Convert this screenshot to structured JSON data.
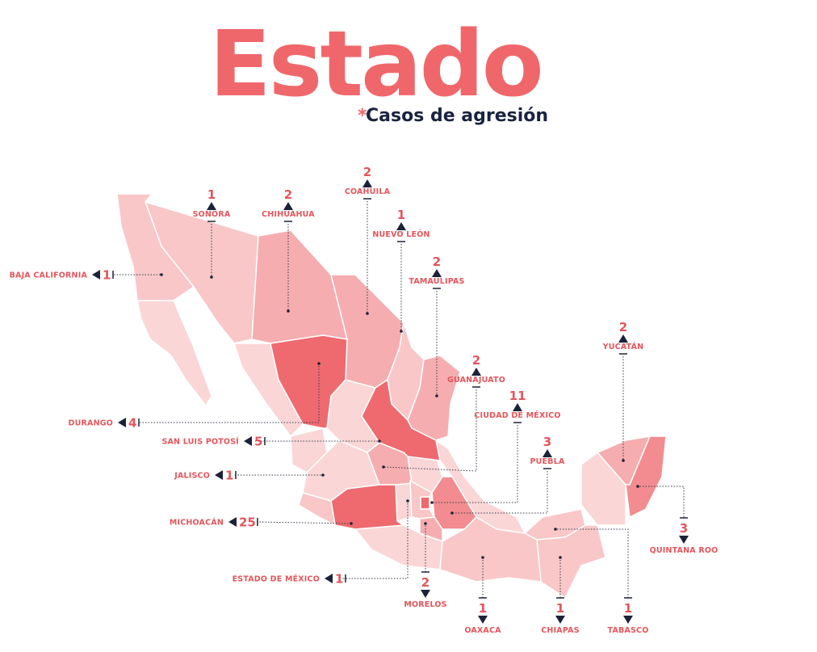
{
  "header": {
    "title": "Estado",
    "asterisk": "*",
    "subtitle": "Casos de agresión"
  },
  "states": [
    {
      "name": "SONORA",
      "count": 1
    },
    {
      "name": "CHIHUAHUA",
      "count": 2
    },
    {
      "name": "COAHUILA",
      "count": 2
    },
    {
      "name": "NUEVO LEÓN",
      "count": 1
    },
    {
      "name": "TAMAULIPAS",
      "count": 2
    },
    {
      "name": "YUCATÁN",
      "count": 2
    },
    {
      "name": "GUANAJUATO",
      "count": 2
    },
    {
      "name": "CIUDAD DE MÉXICO",
      "count": 11
    },
    {
      "name": "PUEBLA",
      "count": 3
    },
    {
      "name": "QUINTANA ROO",
      "count": 3
    },
    {
      "name": "TABASCO",
      "count": 1
    },
    {
      "name": "CHIAPAS",
      "count": 1
    },
    {
      "name": "OAXACA",
      "count": 1
    },
    {
      "name": "MORELOS",
      "count": 2
    },
    {
      "name": "ESTADO DE MÉXICO",
      "count": 1
    },
    {
      "name": "MICHOACÁN",
      "count": 25
    },
    {
      "name": "JALISCO",
      "count": 1
    },
    {
      "name": "SAN LUIS POTOSÍ",
      "count": 5
    },
    {
      "name": "DURANGO",
      "count": 4
    },
    {
      "name": "BAJA CALIFORNIA",
      "count": 1
    }
  ]
}
